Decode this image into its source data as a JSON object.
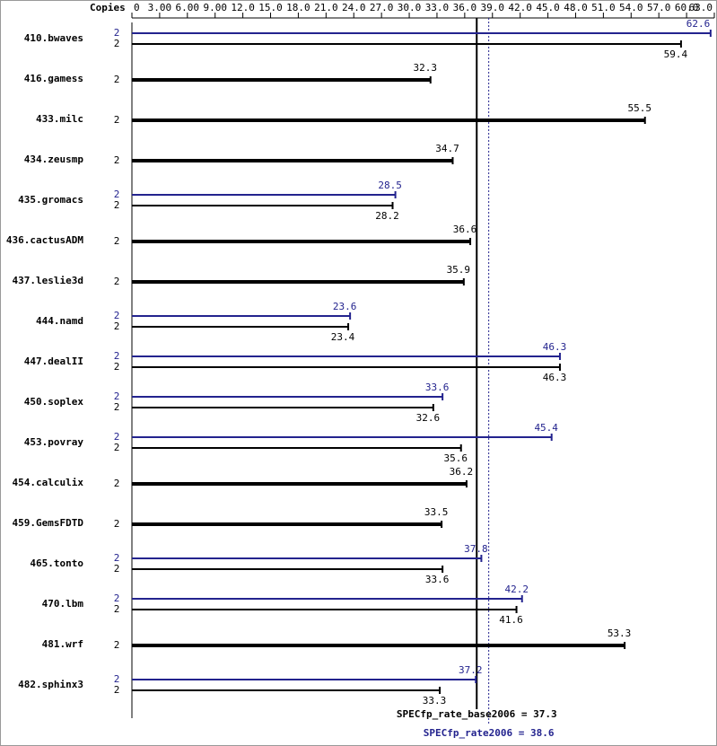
{
  "chart_data": {
    "type": "bar",
    "orientation": "horizontal",
    "copies_label": "Copies",
    "categories": [
      "410.bwaves",
      "416.gamess",
      "433.milc",
      "434.zeusmp",
      "435.gromacs",
      "436.cactusADM",
      "437.leslie3d",
      "444.namd",
      "447.dealII",
      "450.soplex",
      "453.povray",
      "454.calculix",
      "459.GemsFDTD",
      "465.tonto",
      "470.lbm",
      "481.wrf",
      "482.sphinx3"
    ],
    "series": [
      {
        "color": "#23238e",
        "values": [
          62.6,
          null,
          null,
          null,
          28.5,
          null,
          null,
          23.6,
          46.3,
          33.6,
          45.4,
          null,
          null,
          37.8,
          42.2,
          null,
          37.2
        ],
        "copies": [
          2,
          null,
          null,
          null,
          2,
          null,
          null,
          2,
          2,
          2,
          2,
          null,
          null,
          2,
          2,
          null,
          2
        ]
      },
      {
        "color": "#000000",
        "values": [
          59.4,
          32.3,
          55.5,
          34.7,
          28.2,
          36.6,
          35.9,
          23.4,
          46.3,
          32.6,
          35.6,
          36.2,
          33.5,
          33.6,
          41.6,
          53.3,
          33.3
        ],
        "copies": [
          2,
          2,
          2,
          2,
          2,
          2,
          2,
          2,
          2,
          2,
          2,
          2,
          2,
          2,
          2,
          2,
          2
        ]
      }
    ],
    "xlim": [
      0,
      63
    ],
    "xticks": [
      0,
      {
        "value": 3,
        "label": "3.00"
      },
      {
        "value": 6,
        "label": "6.00"
      },
      {
        "value": 9,
        "label": "9.00"
      },
      {
        "value": 12,
        "label": "12.0"
      },
      {
        "value": 15,
        "label": "15.0"
      },
      {
        "value": 18,
        "label": "18.0"
      },
      {
        "value": 21,
        "label": "21.0"
      },
      {
        "value": 24,
        "label": "24.0"
      },
      {
        "value": 27,
        "label": "27.0"
      },
      {
        "value": 30,
        "label": "30.0"
      },
      {
        "value": 33,
        "label": "33.0"
      },
      {
        "value": 36,
        "label": "36.0"
      },
      {
        "value": 39,
        "label": "39.0"
      },
      {
        "value": 42,
        "label": "42.0"
      },
      {
        "value": 45,
        "label": "45.0"
      },
      {
        "value": 48,
        "label": "48.0"
      },
      {
        "value": 51,
        "label": "51.0"
      },
      {
        "value": 54,
        "label": "54.0"
      },
      {
        "value": 57,
        "label": "57.0"
      },
      {
        "value": 60,
        "label": "60.0"
      },
      {
        "value": 63,
        "label": "63.0"
      }
    ],
    "base_line": {
      "value": 37.3,
      "label": "SPECfp_rate_base2006 = 37.3",
      "color": "#000000"
    },
    "peak_line": {
      "value": 38.6,
      "label": "SPECfp_rate2006 = 38.6",
      "color": "#23238e"
    }
  }
}
